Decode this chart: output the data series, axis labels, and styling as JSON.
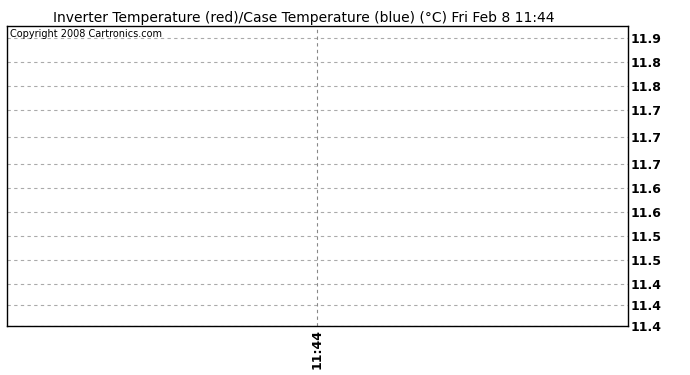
{
  "title": "Inverter Temperature (red)/Case Temperature (blue) (°C) Fri Feb 8 11:44",
  "copyright_text": "Copyright 2008 Cartronics.com",
  "background_color": "#ffffff",
  "plot_bg_color": "#ffffff",
  "border_color": "#000000",
  "grid_color": "#aaaaaa",
  "vline_color": "#888888",
  "title_fontsize": 10,
  "copyright_fontsize": 7,
  "ytick_labels": [
    "11.9",
    "11.8",
    "11.8",
    "11.7",
    "11.7",
    "11.7",
    "11.6",
    "11.6",
    "11.5",
    "11.5",
    "11.4",
    "11.4",
    "11.4"
  ],
  "ytick_positions": [
    0.96,
    0.88,
    0.8,
    0.72,
    0.63,
    0.54,
    0.46,
    0.38,
    0.3,
    0.22,
    0.14,
    0.07,
    0.0
  ],
  "ylim": [
    0,
    1
  ],
  "xlim": [
    0,
    1
  ],
  "xtick_value": 0.5,
  "xtick_label": "11:44",
  "vline_x": 0.5,
  "num_hgrid_lines": 13,
  "ylabel": "",
  "xlabel": ""
}
